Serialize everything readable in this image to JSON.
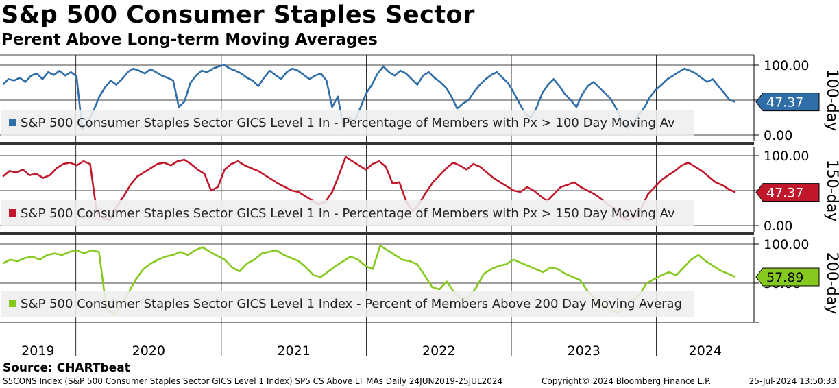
{
  "header": {
    "title": "S&p 500 Consumer Staples Sector",
    "subtitle": "Perent Above Long-term Moving Averages"
  },
  "footer": {
    "source": "Source: CHARTbeat",
    "left": "S5CONS Index (S&P 500 Consumer Staples Sector GICS Level 1 Index) SP5 CS Above LT MAs  Daily 24JUN2019-25JUL2024",
    "copyright": "Copyright© 2024 Bloomberg Finance L.P.",
    "timestamp": "25-Jul-2024 13:50:33"
  },
  "chart_data": {
    "type": "line",
    "date_range": [
      "2019-06-24",
      "2024-07-25"
    ],
    "x_tick_labels": [
      "2019",
      "2020",
      "2021",
      "2022",
      "2023",
      "2024"
    ],
    "ylim": [
      0,
      100
    ],
    "grid": true,
    "panels": [
      {
        "side_label": "100-day",
        "color": "#2f6ea8",
        "y_ticks": [
          "100.00",
          "0.00"
        ],
        "last_value_label": "47.37",
        "legend": "S&P 500 Consumer Staples Sector GICS Level 1 In - Percentage of Members with Px > 100 Day Moving Av",
        "values": [
          72,
          80,
          78,
          82,
          76,
          85,
          88,
          80,
          90,
          86,
          92,
          85,
          90,
          84,
          8,
          20,
          35,
          55,
          68,
          78,
          72,
          80,
          90,
          95,
          92,
          88,
          94,
          90,
          85,
          82,
          78,
          40,
          48,
          74,
          85,
          92,
          90,
          95,
          98,
          100,
          95,
          92,
          88,
          82,
          78,
          70,
          82,
          92,
          86,
          80,
          90,
          95,
          92,
          86,
          80,
          85,
          88,
          78,
          40,
          55,
          10,
          25,
          20,
          40,
          60,
          72,
          88,
          98,
          90,
          85,
          92,
          88,
          80,
          72,
          85,
          90,
          82,
          76,
          68,
          55,
          38,
          45,
          50,
          62,
          72,
          80,
          86,
          90,
          82,
          74,
          60,
          45,
          30,
          25,
          40,
          60,
          72,
          80,
          70,
          58,
          50,
          40,
          58,
          70,
          76,
          68,
          60,
          52,
          38,
          20,
          10,
          18,
          30,
          40,
          55,
          65,
          72,
          80,
          85,
          90,
          95,
          92,
          88,
          82,
          76,
          80,
          70,
          60,
          50,
          47.37
        ]
      },
      {
        "side_label": "150-day",
        "color": "#c0182a",
        "y_ticks": [
          "100.00",
          "0.00"
        ],
        "last_value_label": "47.37",
        "legend": "S&P 500 Consumer Staples Sector GICS Level 1 In - Percentage of Members with Px > 150 Day Moving Av",
        "values": [
          70,
          78,
          76,
          80,
          72,
          74,
          68,
          72,
          82,
          88,
          90,
          86,
          92,
          88,
          18,
          10,
          8,
          28,
          42,
          58,
          70,
          76,
          82,
          88,
          90,
          86,
          92,
          94,
          88,
          80,
          74,
          50,
          55,
          80,
          88,
          92,
          86,
          82,
          78,
          72,
          66,
          60,
          55,
          50,
          48,
          42,
          36,
          30,
          34,
          48,
          72,
          98,
          92,
          86,
          80,
          88,
          92,
          84,
          60,
          62,
          35,
          20,
          32,
          48,
          62,
          72,
          82,
          90,
          86,
          80,
          88,
          84,
          76,
          68,
          62,
          56,
          50,
          48,
          55,
          50,
          42,
          35,
          45,
          55,
          58,
          62,
          55,
          50,
          45,
          38,
          30,
          25,
          12,
          8,
          12,
          25,
          45,
          55,
          65,
          72,
          78,
          86,
          90,
          84,
          78,
          70,
          62,
          58,
          52,
          47.37
        ]
      },
      {
        "side_label": "200-day",
        "color": "#86c91e",
        "y_ticks": [
          "100.00",
          "50.00"
        ],
        "last_value_label": "57.89",
        "legend": "S&P 500 Consumer Staples Sector GICS Level 1 Index - Percent of Members Above 200 Day Moving Averag",
        "values": [
          75,
          80,
          78,
          82,
          84,
          80,
          86,
          88,
          86,
          90,
          92,
          88,
          92,
          90,
          18,
          10,
          22,
          38,
          55,
          68,
          75,
          80,
          84,
          86,
          90,
          86,
          92,
          96,
          90,
          85,
          80,
          70,
          65,
          75,
          80,
          88,
          90,
          92,
          86,
          82,
          78,
          70,
          60,
          58,
          65,
          72,
          78,
          84,
          80,
          72,
          68,
          98,
          92,
          86,
          80,
          78,
          74,
          60,
          45,
          42,
          52,
          38,
          30,
          32,
          45,
          62,
          68,
          72,
          74,
          80,
          76,
          72,
          68,
          64,
          70,
          68,
          62,
          58,
          54,
          40,
          30,
          20,
          18,
          12,
          20,
          28,
          35,
          50,
          55,
          60,
          64,
          60,
          70,
          80,
          86,
          78,
          72,
          66,
          62,
          57.89
        ]
      }
    ]
  }
}
